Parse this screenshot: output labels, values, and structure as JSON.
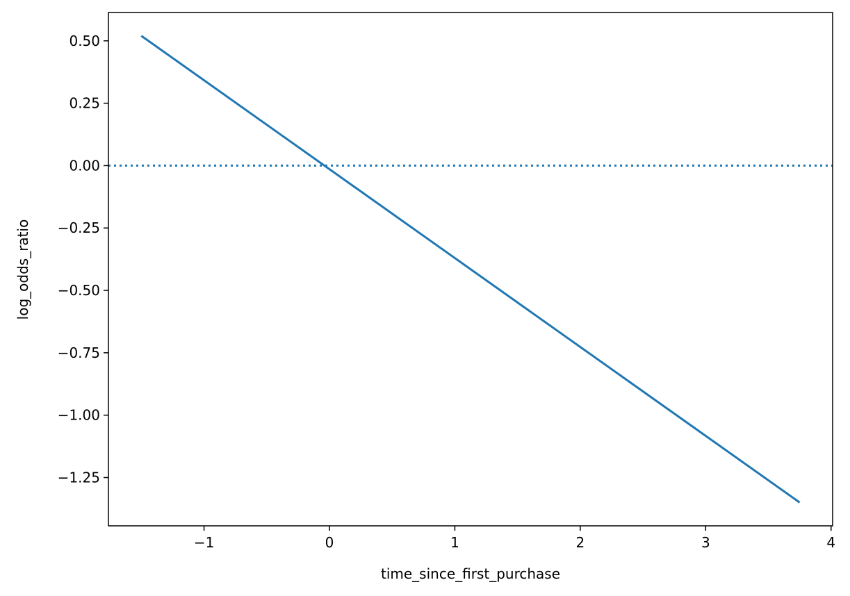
{
  "chart_data": {
    "type": "line",
    "x_label": "time_since_first_purchase",
    "y_label": "log_odds_ratio",
    "x": [
      -1.5,
      3.75
    ],
    "series": [
      {
        "color": "#1f77b4",
        "values": [
          0.52,
          -1.35
        ]
      }
    ],
    "hline": 0,
    "hline_style": "dotted",
    "xlim": [
      -1.7625,
      4.0125
    ],
    "ylim": [
      -1.4435,
      0.6135
    ],
    "xticks": [
      {
        "value": -1,
        "label": "−1"
      },
      0,
      1,
      2,
      3,
      4
    ],
    "yticks": [
      {
        "value": 0.5,
        "label": "0.50"
      },
      {
        "value": 0.25,
        "label": "0.25"
      },
      {
        "value": 0,
        "label": "0.00"
      },
      {
        "value": -0.25,
        "label": "−0.25"
      },
      {
        "value": -0.5,
        "label": "−0.50"
      },
      {
        "value": -0.75,
        "label": "−0.75"
      },
      {
        "value": -1,
        "label": "−1.00"
      },
      {
        "value": -1.25,
        "label": "−1.25"
      }
    ],
    "grid": false
  }
}
